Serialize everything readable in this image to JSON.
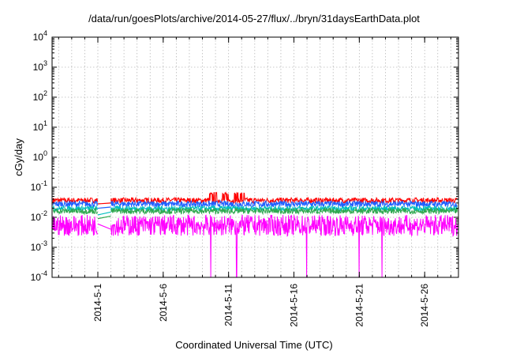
{
  "chart_data": {
    "type": "line",
    "title": "/data/run/goesPlots/archive/2014-05-27/flux/../bryn/31daysEarthData.plot",
    "xlabel": "Coordinated Universal Time (UTC)",
    "ylabel": "cGy/day",
    "yscale": "log",
    "ylim": [
      0.0001,
      10000
    ],
    "xlim": [
      "2014-04-27T12:00",
      "2014-05-28T14:00"
    ],
    "grid": true,
    "x_ticks": [
      "2014-5-1",
      "2014-5-6",
      "2014-5-11",
      "2014-5-16",
      "2014-5-21",
      "2014-5-26"
    ],
    "y_ticks": [
      {
        "base": "10",
        "exp": "-4"
      },
      {
        "base": "10",
        "exp": "-3"
      },
      {
        "base": "10",
        "exp": "-2"
      },
      {
        "base": "10",
        "exp": "-1"
      },
      {
        "base": "10",
        "exp": "0"
      },
      {
        "base": "10",
        "exp": "1"
      },
      {
        "base": "10",
        "exp": "2"
      },
      {
        "base": "10",
        "exp": "3"
      },
      {
        "base": "10",
        "exp": "4"
      }
    ],
    "data_gap": {
      "start": "2014-05-01T00:00",
      "end": "2014-05-02T00:00"
    },
    "series": [
      {
        "color": "#ff0000",
        "low": 0.03,
        "high": 0.045,
        "start": 0.028,
        "end": 0.03
      },
      {
        "color": "#1f5fff",
        "low": 0.022,
        "high": 0.035,
        "start": 0.02,
        "end": 0.022
      },
      {
        "color": "#00bfbf",
        "low": 0.016,
        "high": 0.024,
        "start": 0.012,
        "end": 0.015
      },
      {
        "color": "#2fa84f",
        "low": 0.013,
        "high": 0.02,
        "start": 0.009,
        "end": 0.011
      },
      {
        "color": "#ff00ff",
        "low": 0.0024,
        "high": 0.012,
        "start": 0.006,
        "end": 0.004
      }
    ],
    "dropouts": [
      "2014-04-29T14:00",
      "2014-05-09T15:00",
      "2014-05-11T15:00",
      "2014-05-16T00:00",
      "2014-05-17T00:00",
      "2014-05-21T00:00",
      "2014-05-22T18:00"
    ]
  }
}
